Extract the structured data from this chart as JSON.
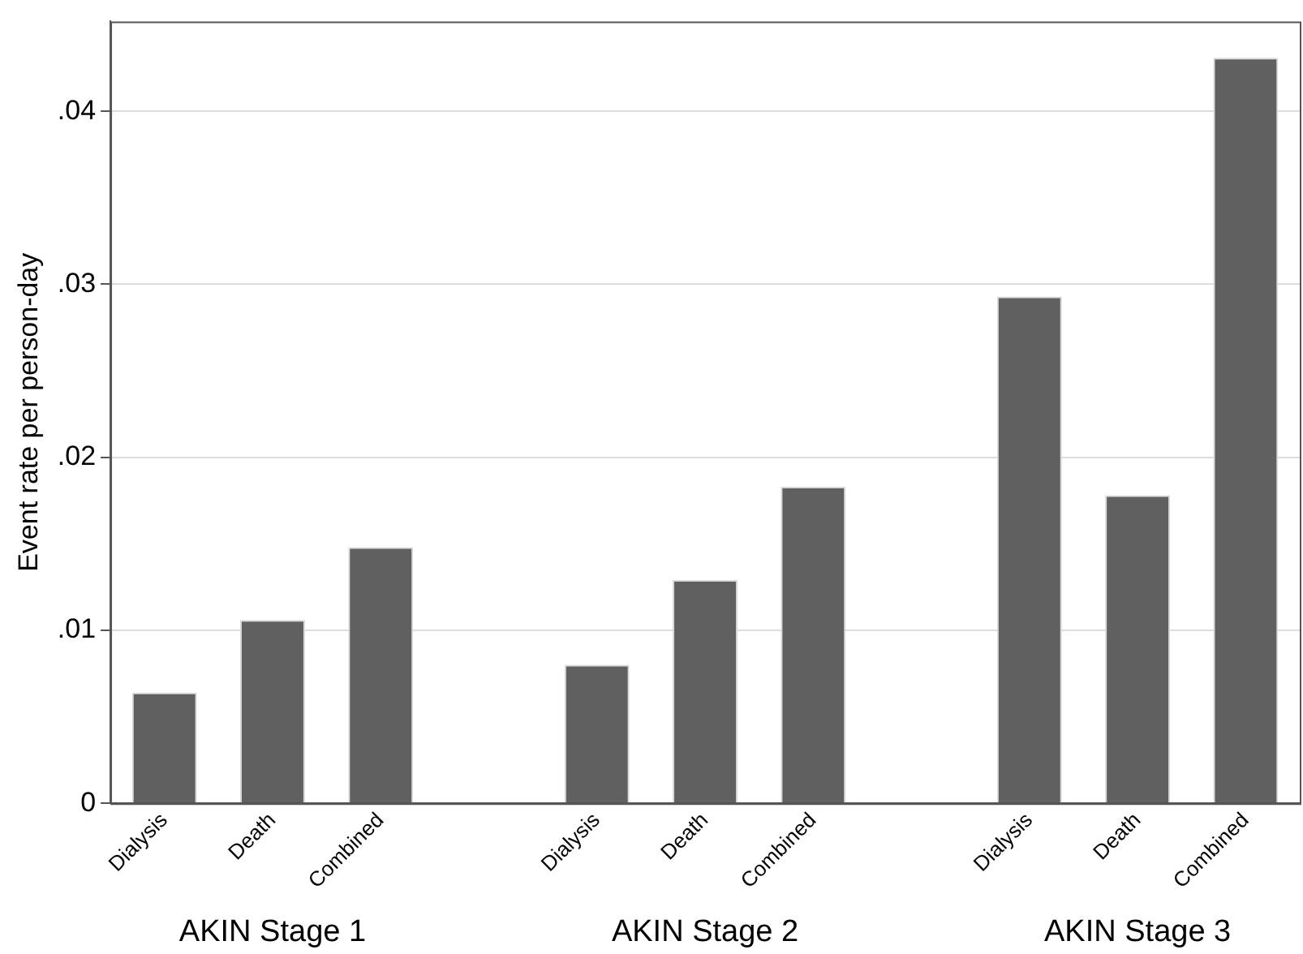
{
  "chart_data": {
    "type": "bar",
    "ylabel": "Event rate per person-day",
    "categories": [
      "Dialysis",
      "Death",
      "Combined",
      null,
      "Dialysis",
      "Death",
      "Combined",
      null,
      "Dialysis",
      "Death",
      "Combined"
    ],
    "values": [
      0.0064,
      0.0106,
      0.0148,
      null,
      0.008,
      0.0129,
      0.0183,
      null,
      0.0293,
      0.0178,
      0.0431
    ],
    "color": "#606060",
    "ylim": [
      0,
      0.0452
    ],
    "yticks": [
      0,
      {
        "value": 0.01,
        "label": ".01"
      },
      {
        "value": 0.02,
        "label": ".02"
      },
      {
        "value": 0.03,
        "label": ".03"
      },
      {
        "value": 0.04,
        "label": ".04"
      }
    ],
    "grid": "y",
    "annotations": [
      "AKIN Stage 1",
      "AKIN Stage 2",
      "AKIN Stage 3"
    ]
  }
}
